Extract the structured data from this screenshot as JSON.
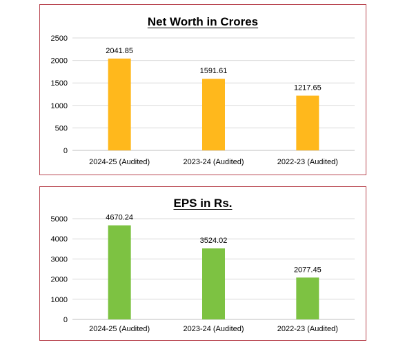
{
  "chart_data": [
    {
      "type": "bar",
      "title": "Net Worth in Crores",
      "categories": [
        "2024-25 (Audited)",
        "2023-24 (Audited)",
        "2022-23 (Audited)"
      ],
      "values": [
        2041.85,
        1591.61,
        1217.65
      ],
      "value_labels": [
        "2041.85",
        "1591.61",
        "1217.65"
      ],
      "ylim": [
        0,
        2500
      ],
      "yticks": [
        0,
        500,
        1000,
        1500,
        2000,
        2500
      ],
      "color": "#FFB81C",
      "grid": true,
      "legend": "none"
    },
    {
      "type": "bar",
      "title": "EPS in Rs.",
      "categories": [
        "2024-25 (Audited)",
        "2023-24 (Audited)",
        "2022-23 (Audited)"
      ],
      "values": [
        4670.24,
        3524.02,
        2077.45
      ],
      "value_labels": [
        "4670.24",
        "3524.02",
        "2077.45"
      ],
      "ylim": [
        0,
        5000
      ],
      "yticks": [
        0,
        1000,
        2000,
        3000,
        4000,
        5000
      ],
      "color": "#7DC242",
      "grid": true,
      "legend": "none"
    }
  ]
}
